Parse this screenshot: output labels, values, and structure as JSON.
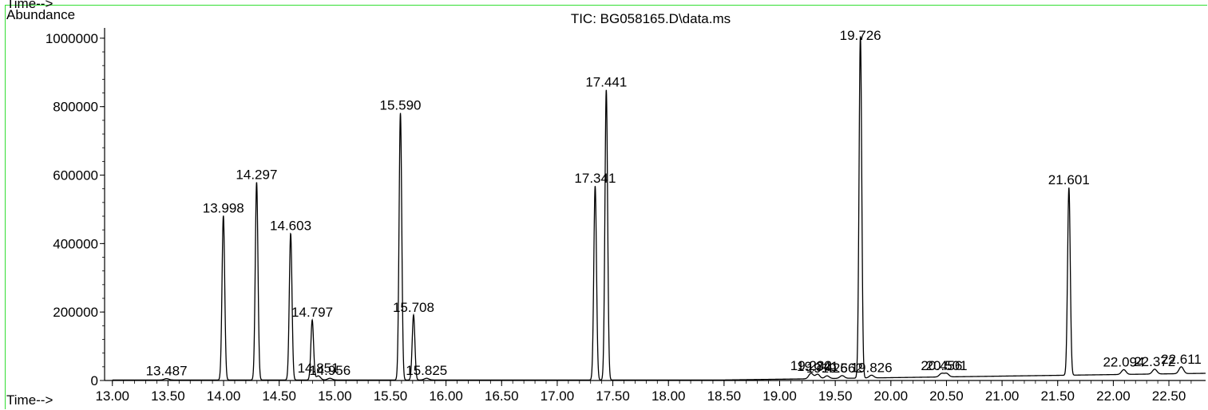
{
  "header": {
    "top_label": "Time-->"
  },
  "chart_data": {
    "type": "line",
    "title": "TIC: BG058165.D\\data.ms",
    "ylabel": "Abundance",
    "xlabel": "Time-->",
    "xlim": [
      12.93,
      22.83
    ],
    "ylim": [
      0,
      1030000
    ],
    "xticks": [
      "13.00",
      "13.50",
      "14.00",
      "14.50",
      "15.00",
      "15.50",
      "16.00",
      "16.50",
      "17.00",
      "17.50",
      "18.00",
      "18.50",
      "19.00",
      "19.50",
      "20.00",
      "20.50",
      "21.00",
      "21.50",
      "22.00",
      "22.50"
    ],
    "yticks": [
      "0",
      "200000",
      "400000",
      "600000",
      "800000",
      "1000000"
    ],
    "peaks": [
      {
        "rt": 13.487,
        "h": 4000,
        "label": "13.487"
      },
      {
        "rt": 13.998,
        "h": 480000,
        "label": "13.998"
      },
      {
        "rt": 14.297,
        "h": 578000,
        "label": "14.297"
      },
      {
        "rt": 14.603,
        "h": 428000,
        "label": "14.603"
      },
      {
        "rt": 14.797,
        "h": 175000,
        "label": "14.797"
      },
      {
        "rt": 14.851,
        "h": 12000,
        "label": "14.851"
      },
      {
        "rt": 14.956,
        "h": 5000,
        "label": "14.956"
      },
      {
        "rt": 15.59,
        "h": 780000,
        "label": "15.590"
      },
      {
        "rt": 15.708,
        "h": 190000,
        "label": "15.708"
      },
      {
        "rt": 15.825,
        "h": 5000,
        "label": "15.825"
      },
      {
        "rt": 17.341,
        "h": 567000,
        "label": "17.341"
      },
      {
        "rt": 17.441,
        "h": 848000,
        "label": "17.441"
      },
      {
        "rt": 19.282,
        "h": 16000,
        "label": "19.282"
      },
      {
        "rt": 19.341,
        "h": 13000,
        "label": "19.341"
      },
      {
        "rt": 19.426,
        "h": 8000,
        "label": "19.426"
      },
      {
        "rt": 19.562,
        "h": 8000,
        "label": "19.562"
      },
      {
        "rt": 19.726,
        "h": 1000000,
        "label": "19.726"
      },
      {
        "rt": 19.826,
        "h": 8000,
        "label": "19.826"
      },
      {
        "rt": 20.456,
        "h": 10000,
        "label": "20.456"
      },
      {
        "rt": 20.501,
        "h": 10000,
        "label": "20.501"
      },
      {
        "rt": 21.601,
        "h": 548000,
        "label": "21.601"
      },
      {
        "rt": 22.094,
        "h": 14000,
        "label": "22.094"
      },
      {
        "rt": 22.372,
        "h": 14000,
        "label": "22.372"
      },
      {
        "rt": 22.611,
        "h": 20000,
        "label": "22.611"
      }
    ]
  }
}
